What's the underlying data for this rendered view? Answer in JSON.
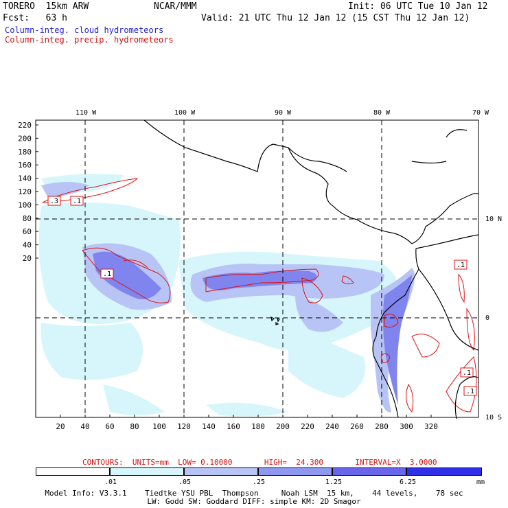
{
  "header": {
    "model": "TORERO  15km ARW",
    "org": "NCAR/MMM",
    "init": "Init: 06 UTC Tue 10 Jan 12",
    "fcst": "Fcst:   63 h",
    "valid": "Valid: 21 UTC Thu 12 Jan 12 (15 CST Thu 12 Jan 12)",
    "field1": "Column-integ. cloud hydrometeors",
    "field2": "Column-integ. precip. hydrometeors"
  },
  "map": {
    "top_lon_labels": [
      "110 W",
      "100 W",
      "90 W",
      "80 W",
      "70 W"
    ],
    "right_lat_labels": [
      "10 N",
      "0",
      "10 S"
    ],
    "left_y_ticks": [
      "220",
      "200",
      "180",
      "160",
      "140",
      "120",
      "100",
      "80",
      "60",
      "40",
      "20"
    ],
    "bottom_x_ticks": [
      "20",
      "40",
      "60",
      "80",
      "100",
      "120",
      "140",
      "160",
      "180",
      "200",
      "220",
      "240",
      "260",
      "280",
      "300",
      "320"
    ],
    "contour_labels": [
      ".3",
      ".1",
      ".1",
      ".1",
      ".1",
      ".1"
    ]
  },
  "contours_line": "CONTOURS:  UNITS=mm  LOW= 0.10000       HIGH=  24.300       INTERVAL=X  3.0000",
  "colorbar": {
    "labels": [
      ".01",
      ".05",
      ".25",
      "1.25",
      "6.25",
      "mm"
    ],
    "colors": [
      "#ffffff",
      "#d6f6fb",
      "#b8c4f5",
      "#8f98f0",
      "#6a66ec",
      "#4040ea",
      "#2020e6"
    ]
  },
  "footer": {
    "line1": "Model Info: V3.3.1    Tiedtke YSU PBL  Thompson     Noah LSM  15 km,    44 levels,    78 sec",
    "line2": "LW: Godd SW: Goddard DIFF: simple KM: 2D Smagor"
  }
}
